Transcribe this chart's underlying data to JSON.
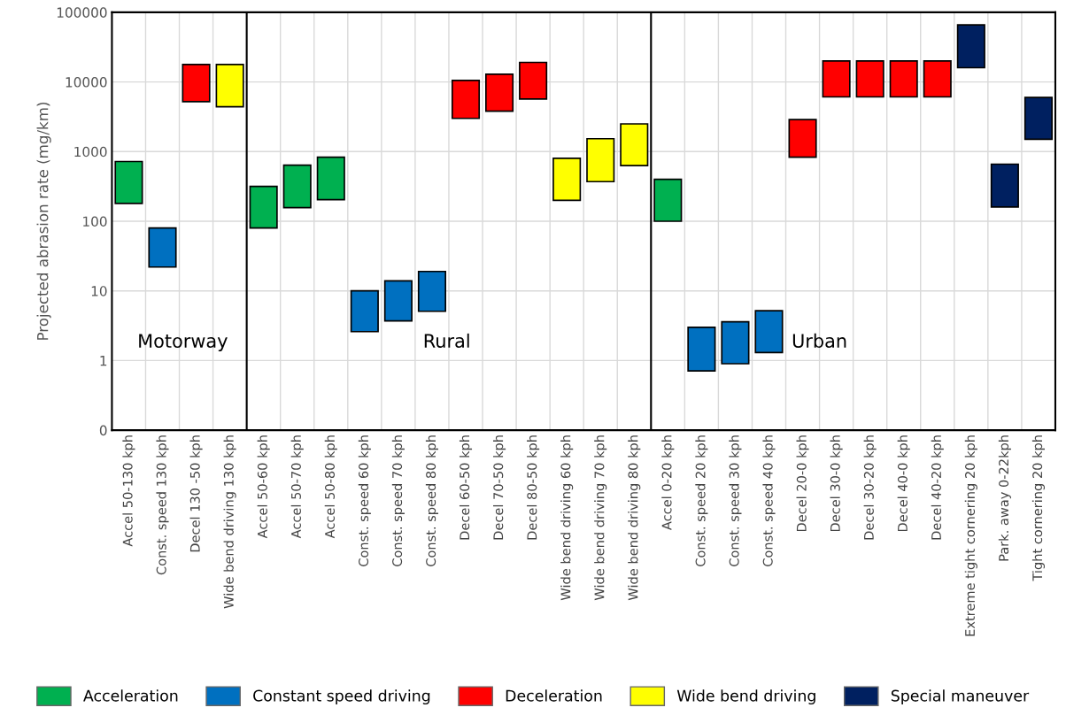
{
  "chart_data": {
    "type": "bar",
    "ylabel": "Projected abrasion rate (mg/km)",
    "categories": [
      "Accel 50-130 kph",
      "Const. speed 130 kph",
      "Decel 130 -50 kph",
      "Wide bend driving 130 kph",
      "Accel 50-60 kph",
      "Accel 50-70 kph",
      "Accel 50-80 kph",
      "Const. speed 60 kph",
      "Const. speed 70 kph",
      "Const. speed 80 kph",
      "Decel 60-50 kph",
      "Decel 70-50 kph",
      "Decel 80-50 kph",
      "Wide bend driving 60 kph",
      "Wide bend driving 70 kph",
      "Wide bend driving 80 kph",
      "Accel 0-20 kph",
      "Const. speed 20 kph",
      "Const. speed 30 kph",
      "Const. speed 40 kph",
      "Decel 20-0 kph",
      "Decel 30-0 kph",
      "Decel 30-20 kph",
      "Decel 40-0 kph",
      "Decel 40-20 kph",
      "Extreme tight cornering 20 kph",
      "Park. away 0-22kph",
      "Tight cornering 20 kph"
    ],
    "series": [
      {
        "name": "Acceleration",
        "color": "#00b050",
        "values": [
          540,
          null,
          null,
          null,
          236,
          483,
          626,
          null,
          null,
          null,
          null,
          null,
          null,
          null,
          null,
          null,
          300,
          null,
          null,
          null,
          null,
          null,
          null,
          null,
          null,
          null,
          null,
          null
        ],
        "base": [
          180,
          null,
          null,
          null,
          80,
          157,
          204,
          null,
          null,
          null,
          null,
          null,
          null,
          null,
          null,
          null,
          100,
          null,
          null,
          null,
          null,
          null,
          null,
          null,
          null,
          null,
          null,
          null
        ]
      },
      {
        "name": "Constant speed driving",
        "color": "#0070c0",
        "values": [
          null,
          58,
          null,
          null,
          null,
          null,
          null,
          7.4,
          10.2,
          13.9,
          null,
          null,
          null,
          null,
          null,
          null,
          null,
          2.29,
          2.7,
          3.9,
          null,
          null,
          null,
          null,
          null,
          null,
          null,
          null
        ],
        "base": [
          null,
          22,
          null,
          null,
          null,
          null,
          null,
          2.6,
          3.7,
          5.1,
          null,
          null,
          null,
          null,
          null,
          null,
          null,
          0.71,
          0.9,
          1.3,
          null,
          null,
          null,
          null,
          null,
          null,
          null,
          null
        ]
      },
      {
        "name": "Deceleration",
        "color": "#ff0000",
        "values": [
          null,
          null,
          12600,
          null,
          null,
          null,
          null,
          null,
          null,
          null,
          7500,
          9100,
          13400,
          null,
          null,
          null,
          null,
          null,
          null,
          null,
          2050,
          13900,
          13900,
          13900,
          13900,
          null,
          null,
          null
        ],
        "base": [
          null,
          null,
          5200,
          null,
          null,
          null,
          null,
          null,
          null,
          null,
          3000,
          3800,
          5700,
          null,
          null,
          null,
          null,
          null,
          null,
          null,
          830,
          6100,
          6100,
          6100,
          6100,
          null,
          null,
          null
        ]
      },
      {
        "name": "Wide bend driving",
        "color": "#ffff00",
        "values": [
          null,
          null,
          null,
          13400,
          null,
          null,
          null,
          null,
          null,
          null,
          null,
          null,
          null,
          600,
          1160,
          1870,
          null,
          null,
          null,
          null,
          null,
          null,
          null,
          null,
          null,
          null,
          null,
          null
        ],
        "base": [
          null,
          null,
          null,
          4400,
          null,
          null,
          null,
          null,
          null,
          null,
          null,
          null,
          null,
          200,
          370,
          630,
          null,
          null,
          null,
          null,
          null,
          null,
          null,
          null,
          null,
          null,
          null,
          null
        ]
      },
      {
        "name": "Special maneuver",
        "color": "#002060",
        "values": [
          null,
          null,
          null,
          null,
          null,
          null,
          null,
          null,
          null,
          null,
          null,
          null,
          null,
          null,
          null,
          null,
          null,
          null,
          null,
          null,
          null,
          null,
          null,
          null,
          null,
          50000,
          500,
          4500
        ],
        "base": [
          null,
          null,
          null,
          null,
          null,
          null,
          null,
          null,
          null,
          null,
          null,
          null,
          null,
          null,
          null,
          null,
          null,
          null,
          null,
          null,
          null,
          null,
          null,
          null,
          null,
          16000,
          160,
          1500
        ]
      }
    ],
    "log": true,
    "ylim": [
      0.1,
      100000
    ],
    "yticks": [
      {
        "value": 0.1,
        "label": "0"
      },
      1,
      10,
      100,
      1000,
      10000,
      100000
    ],
    "annotations": [
      "Motorway",
      "Rural",
      "Urban"
    ],
    "grid": true,
    "legend": "bottom"
  }
}
